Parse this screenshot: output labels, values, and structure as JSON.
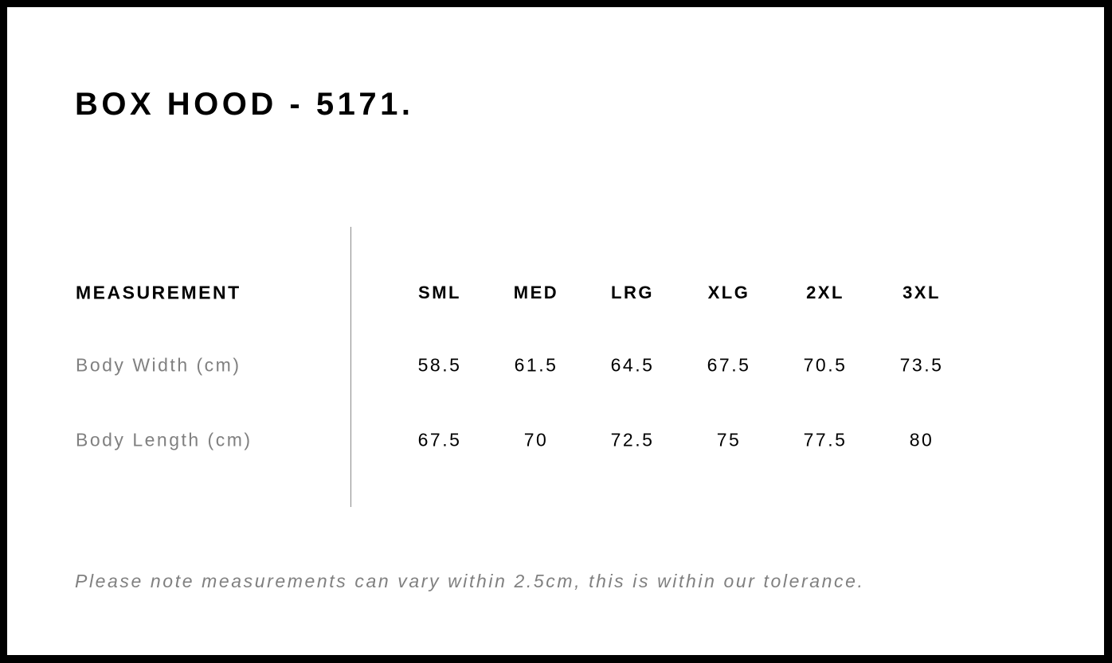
{
  "title": "BOX HOOD - 5171.",
  "table": {
    "header_label": "MEASUREMENT",
    "sizes": [
      "SML",
      "MED",
      "LRG",
      "XLG",
      "2XL",
      "3XL"
    ],
    "rows": [
      {
        "label": "Body Width (cm)",
        "values": [
          "58.5",
          "61.5",
          "64.5",
          "67.5",
          "70.5",
          "73.5"
        ]
      },
      {
        "label": "Body Length (cm)",
        "values": [
          "67.5",
          "70",
          "72.5",
          "75",
          "77.5",
          "80"
        ]
      }
    ]
  },
  "note": "Please note measurements can vary within 2.5cm, this is within our tolerance.",
  "colors": {
    "frame": "#000000",
    "label_text": "#808080",
    "divider": "#8a8a8a"
  }
}
